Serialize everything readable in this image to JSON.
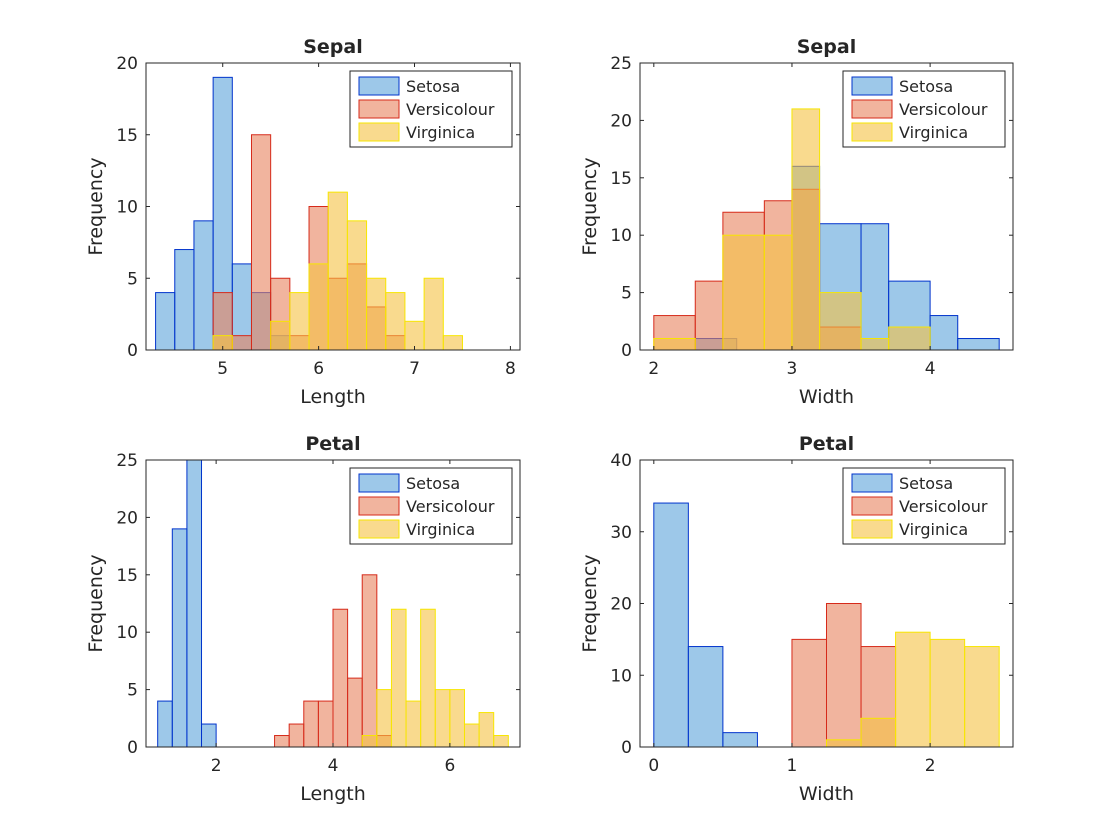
{
  "colors": {
    "setosa_fill": "#5BA3DB",
    "setosa_edge": "#0033CC",
    "versicolour_fill": "#E8825D",
    "versicolour_edge": "#D62A1A",
    "virginica_fill": "#F5C242",
    "virginica_edge": "#F7E600",
    "axis": "#262626"
  },
  "chart_data": [
    {
      "type": "histogram",
      "title": "Sepal",
      "xlabel": "Length",
      "ylabel": "Frequency",
      "xlim": [
        4.2,
        8.1
      ],
      "ylim": [
        0,
        20
      ],
      "xticks": [
        5,
        6,
        7,
        8
      ],
      "yticks": [
        0,
        5,
        10,
        15,
        20
      ],
      "legend": "top-right",
      "grid": false,
      "series": [
        {
          "name": "Setosa",
          "edges": [
            4.3,
            4.5,
            4.7,
            4.9,
            5.1,
            5.3,
            5.5,
            5.7,
            5.9
          ],
          "values": [
            4,
            7,
            9,
            19,
            6,
            4,
            1,
            0
          ]
        },
        {
          "name": "Versicolour",
          "edges": [
            4.9,
            5.1,
            5.3,
            5.5,
            5.7,
            5.9,
            6.1,
            6.3,
            6.5,
            6.7,
            6.9,
            7.1
          ],
          "values": [
            4,
            1,
            15,
            5,
            1,
            10,
            5,
            6,
            3,
            1,
            0
          ]
        },
        {
          "name": "Virginica",
          "edges": [
            4.9,
            5.1,
            5.3,
            5.5,
            5.7,
            5.9,
            6.1,
            6.3,
            6.5,
            6.7,
            6.9,
            7.1,
            7.3,
            7.5,
            7.7,
            7.9
          ],
          "values": [
            1,
            0,
            0,
            2,
            4,
            6,
            11,
            9,
            5,
            4,
            2,
            5,
            1,
            0,
            0
          ]
        }
      ]
    },
    {
      "type": "histogram",
      "title": "Sepal",
      "xlabel": "Width",
      "ylabel": "Frequency",
      "xlim": [
        1.9,
        4.6
      ],
      "ylim": [
        0,
        25
      ],
      "xticks": [
        2,
        3,
        4
      ],
      "yticks": [
        0,
        5,
        10,
        15,
        20,
        25
      ],
      "legend": "top-right",
      "grid": false,
      "series": [
        {
          "name": "Setosa",
          "edges": [
            2.3,
            2.6,
            2.8,
            3.0,
            3.2,
            3.5,
            3.7,
            4.0,
            4.2,
            4.5
          ],
          "values": [
            1,
            0,
            0,
            16,
            11,
            11,
            6,
            3,
            1
          ]
        },
        {
          "name": "Versicolour",
          "edges": [
            2.0,
            2.3,
            2.5,
            2.8,
            3.0,
            3.2,
            3.5
          ],
          "values": [
            3,
            6,
            12,
            13,
            14,
            2
          ]
        },
        {
          "name": "Virginica",
          "edges": [
            2.0,
            2.3,
            2.5,
            2.8,
            3.0,
            3.2,
            3.5,
            3.7,
            4.0
          ],
          "values": [
            1,
            0,
            10,
            10,
            21,
            5,
            1,
            2
          ]
        }
      ]
    },
    {
      "type": "histogram",
      "title": "Petal",
      "xlabel": "Length",
      "ylabel": "Frequency",
      "xlim": [
        0.8,
        7.2
      ],
      "ylim": [
        0,
        25
      ],
      "xticks": [
        2,
        4,
        6
      ],
      "yticks": [
        0,
        5,
        10,
        15,
        20,
        25
      ],
      "legend": "top-right",
      "grid": false,
      "series": [
        {
          "name": "Setosa",
          "edges": [
            1.0,
            1.25,
            1.5,
            1.75,
            2.0
          ],
          "values": [
            4,
            19,
            25,
            2
          ]
        },
        {
          "name": "Versicolour",
          "edges": [
            3.0,
            3.25,
            3.5,
            3.75,
            4.0,
            4.25,
            4.5,
            4.75,
            5.0,
            5.25
          ],
          "values": [
            1,
            2,
            4,
            4,
            12,
            6,
            15,
            1,
            0
          ]
        },
        {
          "name": "Virginica",
          "edges": [
            4.5,
            4.75,
            5.0,
            5.25,
            5.5,
            5.75,
            6.0,
            6.25,
            6.5,
            6.75,
            7.0
          ],
          "values": [
            1,
            5,
            12,
            4,
            12,
            5,
            5,
            2,
            3,
            1
          ]
        }
      ]
    },
    {
      "type": "histogram",
      "title": "Petal",
      "xlabel": "Width",
      "ylabel": "Frequency",
      "xlim": [
        -0.1,
        2.6
      ],
      "ylim": [
        0,
        40
      ],
      "xticks": [
        0,
        1,
        2
      ],
      "yticks": [
        0,
        10,
        20,
        30,
        40
      ],
      "legend": "top-right",
      "grid": false,
      "series": [
        {
          "name": "Setosa",
          "edges": [
            0.0,
            0.25,
            0.5,
            0.75
          ],
          "values": [
            34,
            14,
            2
          ]
        },
        {
          "name": "Versicolour",
          "edges": [
            1.0,
            1.25,
            1.5,
            1.75
          ],
          "values": [
            15,
            20,
            14
          ]
        },
        {
          "name": "Virginica",
          "edges": [
            1.25,
            1.5,
            1.75,
            2.0,
            2.25,
            2.5
          ],
          "values": [
            1,
            4,
            16,
            15,
            14
          ]
        }
      ]
    }
  ]
}
